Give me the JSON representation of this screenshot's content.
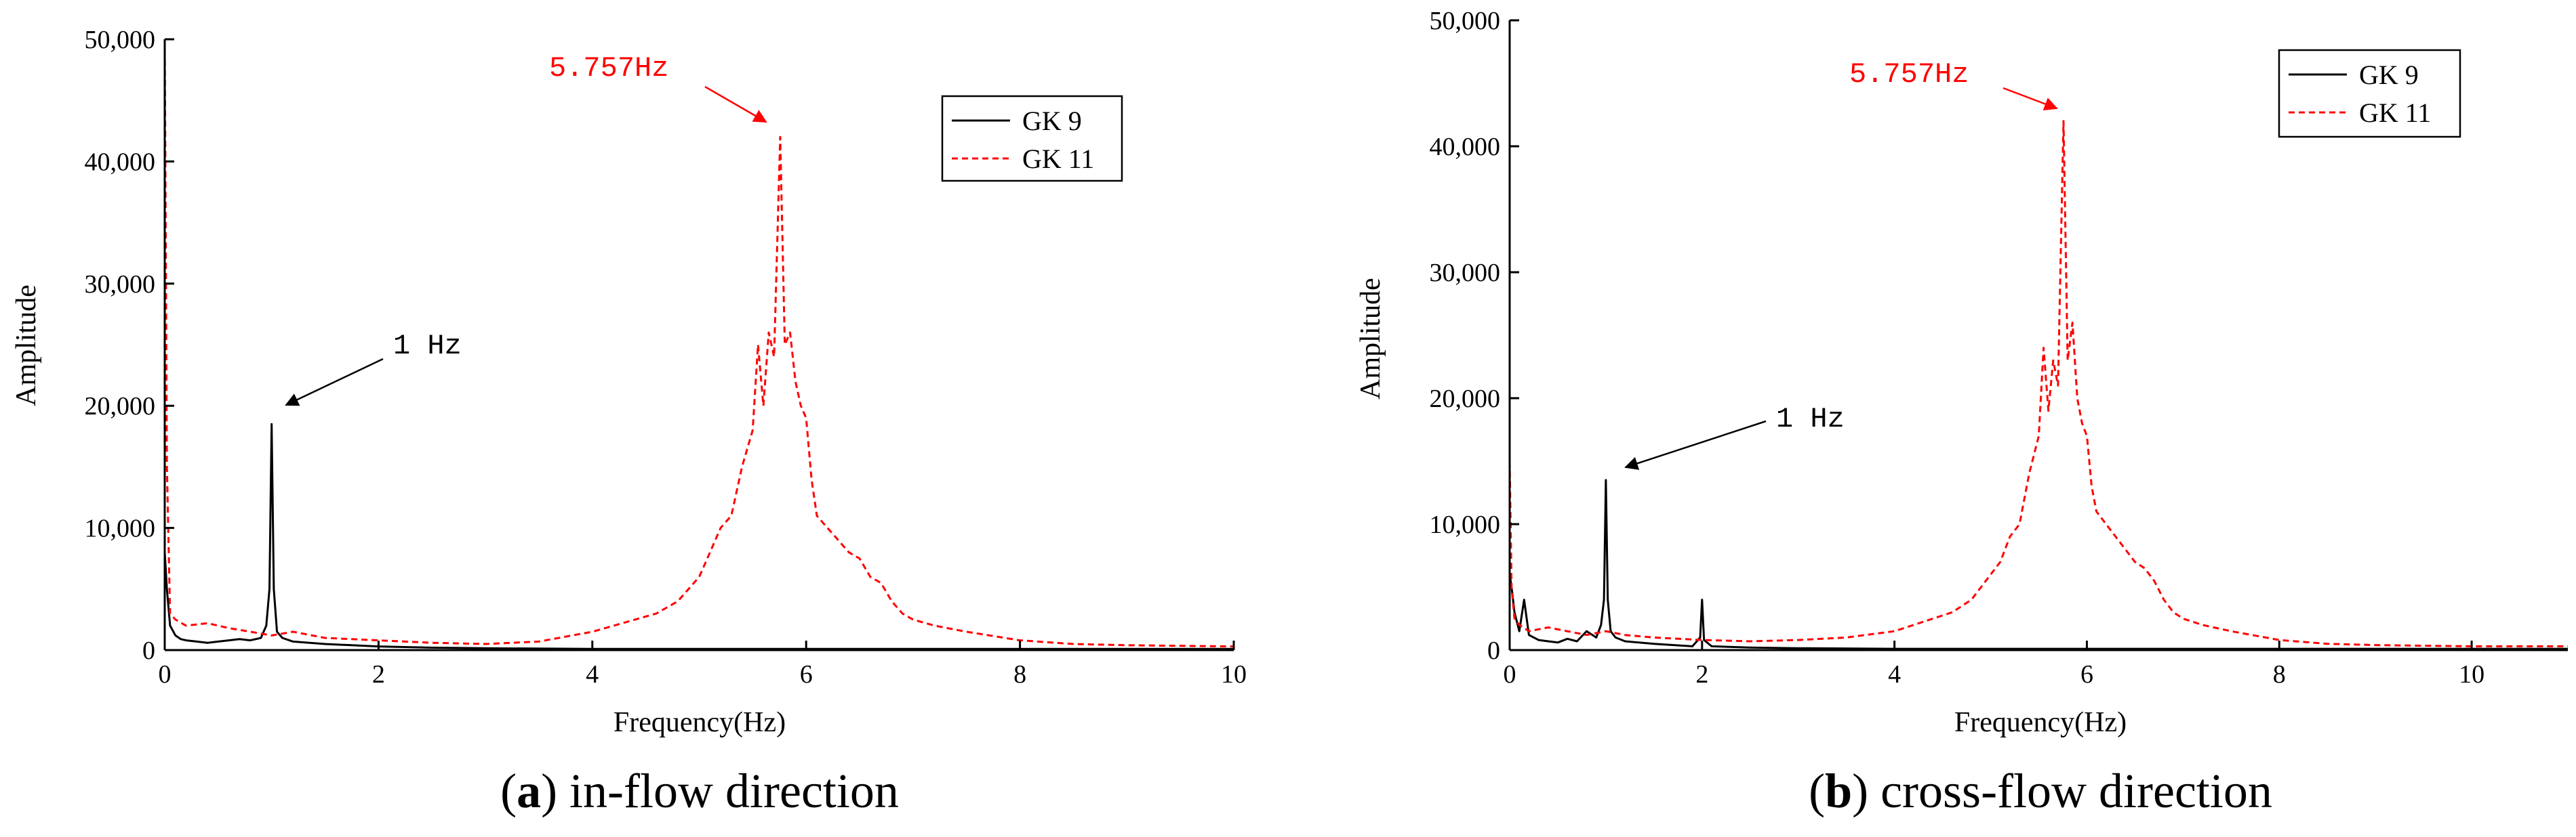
{
  "colors": {
    "gk9": "#000000",
    "gk11": "#ff0000"
  },
  "chart_data": [
    {
      "type": "line",
      "panel": "a",
      "caption_letter": "a",
      "caption_text": " in-flow direction",
      "xlabel": "Frequency(Hz)",
      "ylabel": "Amplitude",
      "xlim": [
        0,
        10
      ],
      "ylim": [
        0,
        50000
      ],
      "xticks": [
        0,
        2,
        4,
        6,
        8,
        10
      ],
      "xtick_labels": [
        "0",
        "2",
        "4",
        "6",
        "8",
        "10"
      ],
      "yticks": [
        0,
        10000,
        20000,
        30000,
        40000,
        50000
      ],
      "ytick_labels": [
        "0",
        "10,000",
        "20,000",
        "30,000",
        "40,000",
        "50,000"
      ],
      "annotations": [
        {
          "text": "5.757Hz",
          "x": 5.757,
          "y": 42000,
          "color": "red"
        },
        {
          "text": "1 Hz",
          "x": 1.0,
          "y": 18500,
          "color": "black"
        }
      ],
      "series": [
        {
          "name": "GK 9",
          "style": "solid",
          "color": "#000000",
          "x": [
            0.0,
            0.02,
            0.05,
            0.1,
            0.15,
            0.2,
            0.3,
            0.4,
            0.5,
            0.6,
            0.7,
            0.8,
            0.9,
            0.95,
            0.98,
            1.0,
            1.02,
            1.05,
            1.1,
            1.2,
            1.5,
            2.0,
            2.5,
            3.0,
            4.0,
            5.0,
            6.0,
            7.0,
            8.0,
            9.0,
            10.0
          ],
          "y": [
            8000,
            5000,
            2000,
            1200,
            900,
            800,
            700,
            600,
            700,
            800,
            900,
            800,
            1000,
            2000,
            5000,
            18500,
            5000,
            1500,
            1000,
            700,
            500,
            300,
            200,
            150,
            100,
            100,
            100,
            100,
            100,
            100,
            100
          ]
        },
        {
          "name": "GK 11",
          "style": "dashed",
          "color": "#ff0000",
          "x": [
            0.0,
            0.02,
            0.05,
            0.1,
            0.2,
            0.4,
            0.6,
            0.8,
            1.0,
            1.2,
            1.5,
            2.0,
            2.5,
            3.0,
            3.5,
            4.0,
            4.2,
            4.4,
            4.6,
            4.8,
            5.0,
            5.1,
            5.2,
            5.3,
            5.4,
            5.5,
            5.55,
            5.6,
            5.65,
            5.7,
            5.757,
            5.8,
            5.85,
            5.9,
            5.95,
            6.0,
            6.05,
            6.1,
            6.2,
            6.3,
            6.4,
            6.5,
            6.6,
            6.7,
            6.8,
            6.9,
            7.0,
            7.2,
            7.5,
            8.0,
            8.5,
            9.0,
            10.0
          ],
          "y": [
            50000,
            15000,
            3000,
            2500,
            2000,
            2200,
            1800,
            1500,
            1200,
            1500,
            1000,
            800,
            600,
            500,
            700,
            1500,
            2000,
            2500,
            3000,
            4000,
            6000,
            8000,
            10000,
            11000,
            15000,
            18000,
            25000,
            20000,
            26000,
            24000,
            42000,
            25000,
            26000,
            22000,
            20000,
            19000,
            14000,
            11000,
            10000,
            9000,
            8000,
            7500,
            6000,
            5500,
            4000,
            3000,
            2500,
            2000,
            1500,
            800,
            500,
            400,
            300
          ]
        }
      ]
    },
    {
      "type": "line",
      "panel": "b",
      "caption_letter": "b",
      "caption_text": " cross-flow direction",
      "xlabel": "Frequency(Hz)",
      "ylabel": "Amplitude",
      "xlim": [
        0,
        11
      ],
      "ylim": [
        0,
        50000
      ],
      "xticks": [
        0,
        2,
        4,
        6,
        8,
        10
      ],
      "xtick_labels": [
        "0",
        "2",
        "4",
        "6",
        "8",
        "10"
      ],
      "yticks": [
        0,
        10000,
        20000,
        30000,
        40000,
        50000
      ],
      "ytick_labels": [
        "0",
        "10,000",
        "20,000",
        "30,000",
        "40,000",
        "50,000"
      ],
      "annotations": [
        {
          "text": "5.757Hz",
          "x": 5.757,
          "y": 42000,
          "color": "red"
        },
        {
          "text": "1 Hz",
          "x": 1.0,
          "y": 13500,
          "color": "black"
        }
      ],
      "series": [
        {
          "name": "GK 9",
          "style": "solid",
          "color": "#000000",
          "x": [
            0.0,
            0.02,
            0.05,
            0.1,
            0.15,
            0.2,
            0.3,
            0.4,
            0.5,
            0.6,
            0.7,
            0.8,
            0.9,
            0.95,
            0.98,
            1.0,
            1.02,
            1.05,
            1.1,
            1.2,
            1.5,
            1.9,
            1.98,
            2.0,
            2.02,
            2.1,
            2.5,
            3.0,
            4.0,
            5.0,
            6.0,
            7.0,
            8.0,
            9.0,
            10.0,
            11.0
          ],
          "y": [
            6000,
            5000,
            3000,
            1500,
            4000,
            1200,
            800,
            700,
            600,
            900,
            700,
            1500,
            1000,
            2000,
            4000,
            13500,
            4000,
            1500,
            1000,
            700,
            500,
            300,
            1000,
            4000,
            800,
            300,
            200,
            150,
            100,
            100,
            100,
            100,
            100,
            100,
            100,
            100
          ]
        },
        {
          "name": "GK 11",
          "style": "dashed",
          "color": "#ff0000",
          "x": [
            0.0,
            0.02,
            0.05,
            0.1,
            0.2,
            0.4,
            0.6,
            0.8,
            1.0,
            1.2,
            1.5,
            2.0,
            2.5,
            3.0,
            3.5,
            4.0,
            4.2,
            4.4,
            4.6,
            4.8,
            5.0,
            5.1,
            5.2,
            5.3,
            5.4,
            5.5,
            5.55,
            5.6,
            5.65,
            5.7,
            5.757,
            5.8,
            5.85,
            5.9,
            5.95,
            6.0,
            6.05,
            6.1,
            6.2,
            6.3,
            6.4,
            6.5,
            6.6,
            6.7,
            6.8,
            6.9,
            7.0,
            7.2,
            7.5,
            8.0,
            8.5,
            9.0,
            10.0,
            11.0
          ],
          "y": [
            15000,
            5000,
            2500,
            2000,
            1500,
            1800,
            1500,
            1200,
            1500,
            1200,
            1000,
            800,
            700,
            800,
            1000,
            1500,
            2000,
            2500,
            3000,
            4000,
            6000,
            7000,
            9000,
            10000,
            14000,
            17000,
            24000,
            19000,
            23000,
            21000,
            42000,
            23000,
            26000,
            20000,
            18000,
            17000,
            13000,
            11000,
            10000,
            9000,
            8000,
            7000,
            6500,
            5500,
            4000,
            3000,
            2500,
            2000,
            1500,
            800,
            500,
            400,
            300,
            300
          ]
        }
      ]
    }
  ]
}
